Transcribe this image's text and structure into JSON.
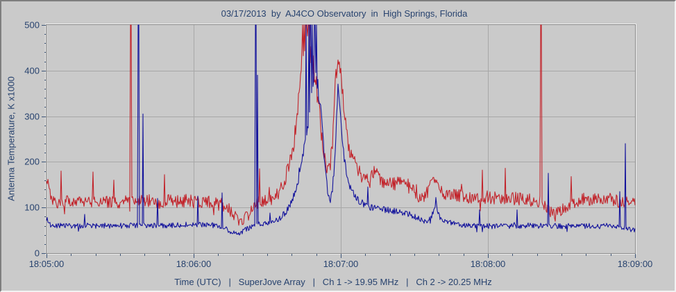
{
  "colors": {
    "window_bg": "#cacaca",
    "plot_border": "#8a8a8a",
    "plot_bevel": "#efefef",
    "grid": "#a7a7a7",
    "tick": "#3d5578",
    "text": "#27426e",
    "ch1": "#c2242b",
    "ch2": "#14149c"
  },
  "chart_data": {
    "type": "line",
    "title": "03/17/2013  by  AJ4CO Observatory  in  High Springs, Florida",
    "xlabel": "Time (UTC)   |   SuperJove Array   |   Ch 1 -> 19.95 MHz   |   Ch 2 -> 20.25 MHz",
    "ylabel": "Antenna Temperature, K x1000",
    "x_tick_labels": [
      "18:05:00",
      "18:06:00",
      "18:07:00",
      "18:08:00",
      "18:09:00"
    ],
    "y_tick_values": [
      0,
      100,
      200,
      300,
      400,
      500
    ],
    "ylim": [
      0,
      500
    ],
    "x_span_seconds": 240,
    "x_minor_tick_seconds": 10,
    "y_minor_tick": 20,
    "grid": "on",
    "legend": "none",
    "seed": 20130317,
    "series": [
      {
        "name": "Ch 1",
        "frequency": "19.95 MHz",
        "color_key": "ch1",
        "noise_base": 9,
        "noise_scale": 0.045,
        "envelope": [
          [
            0,
            165
          ],
          [
            0.8,
            148
          ],
          [
            1.6,
            128
          ],
          [
            3,
            114
          ],
          [
            6,
            110
          ],
          [
            10,
            114
          ],
          [
            14,
            111
          ],
          [
            18,
            115
          ],
          [
            22,
            111
          ],
          [
            26,
            114
          ],
          [
            30,
            111
          ],
          [
            34,
            116
          ],
          [
            38,
            113
          ],
          [
            42,
            115
          ],
          [
            46,
            111
          ],
          [
            50,
            116
          ],
          [
            54,
            112
          ],
          [
            58,
            115
          ],
          [
            62,
            110
          ],
          [
            66,
            112
          ],
          [
            69,
            108
          ],
          [
            72,
            106
          ],
          [
            74,
            99
          ],
          [
            76,
            88
          ],
          [
            78,
            75
          ],
          [
            79.5,
            68
          ],
          [
            81,
            78
          ],
          [
            82.5,
            94
          ],
          [
            84,
            106
          ],
          [
            86,
            112
          ],
          [
            88,
            114
          ],
          [
            90,
            116
          ],
          [
            92,
            118
          ],
          [
            94,
            128
          ],
          [
            96,
            146
          ],
          [
            97.5,
            166
          ],
          [
            99,
            196
          ],
          [
            100.5,
            232
          ],
          [
            102,
            292
          ],
          [
            103,
            352
          ],
          [
            104,
            438
          ],
          [
            104.8,
            464
          ],
          [
            105.6,
            470
          ],
          [
            106.4,
            458
          ],
          [
            107.2,
            446
          ],
          [
            108,
            432
          ],
          [
            109,
            406
          ],
          [
            110,
            372
          ],
          [
            110.8,
            332
          ],
          [
            111.6,
            292
          ],
          [
            112.4,
            246
          ],
          [
            113.2,
            202
          ],
          [
            114,
            182
          ],
          [
            114.8,
            178
          ],
          [
            115.6,
            192
          ],
          [
            116.4,
            226
          ],
          [
            117.2,
            302
          ],
          [
            118,
            392
          ],
          [
            118.6,
            428
          ],
          [
            119.2,
            437
          ],
          [
            119.8,
            416
          ],
          [
            120.5,
            372
          ],
          [
            121.3,
            322
          ],
          [
            122.1,
            272
          ],
          [
            123,
            236
          ],
          [
            124,
            214
          ],
          [
            125.5,
            196
          ],
          [
            127,
            181
          ],
          [
            128.5,
            169
          ],
          [
            130,
            163
          ],
          [
            132,
            159
          ],
          [
            133.5,
            181
          ],
          [
            135,
            168
          ],
          [
            137,
            158
          ],
          [
            139,
            153
          ],
          [
            141,
            156
          ],
          [
            143,
            151
          ],
          [
            145,
            156
          ],
          [
            147,
            151
          ],
          [
            149,
            139
          ],
          [
            151,
            123
          ],
          [
            152.5,
            116
          ],
          [
            154,
            121
          ],
          [
            155.5,
            136
          ],
          [
            157,
            149
          ],
          [
            158.2,
            159
          ],
          [
            159.2,
            149
          ],
          [
            160.5,
            139
          ],
          [
            162,
            133
          ],
          [
            164,
            129
          ],
          [
            167,
            127
          ],
          [
            170,
            125
          ],
          [
            173,
            123
          ],
          [
            176,
            121
          ],
          [
            179,
            120
          ],
          [
            182,
            122
          ],
          [
            185,
            120
          ],
          [
            188,
            118
          ],
          [
            191,
            120
          ],
          [
            194,
            118
          ],
          [
            197,
            116
          ],
          [
            200,
            114
          ],
          [
            201.3,
            116
          ],
          [
            202.4,
            110
          ],
          [
            203.5,
            99
          ],
          [
            205,
            91
          ],
          [
            206.5,
            86
          ],
          [
            208,
            87
          ],
          [
            209.5,
            93
          ],
          [
            211,
            99
          ],
          [
            213,
            106
          ],
          [
            215,
            111
          ],
          [
            217.5,
            117
          ],
          [
            220,
            121
          ],
          [
            222.5,
            118
          ],
          [
            225,
            122
          ],
          [
            227.5,
            117
          ],
          [
            230,
            121
          ],
          [
            232,
            116
          ],
          [
            234,
            112
          ],
          [
            236,
            110
          ],
          [
            238,
            112
          ],
          [
            240,
            108
          ]
        ],
        "spikes": [
          [
            6,
            180
          ],
          [
            19,
            178
          ],
          [
            27.5,
            160
          ],
          [
            34.3,
            500,
            2
          ],
          [
            48,
            172
          ],
          [
            86.8,
            185
          ],
          [
            104.4,
            500
          ],
          [
            104.9,
            500
          ],
          [
            105.5,
            500,
            2
          ],
          [
            106.2,
            500
          ],
          [
            106.8,
            500,
            2
          ],
          [
            107.4,
            500
          ],
          [
            177.7,
            182
          ],
          [
            187,
            186
          ],
          [
            201.6,
            500,
            2
          ],
          [
            214,
            168
          ]
        ]
      },
      {
        "name": "Ch 2",
        "frequency": "20.25 MHz",
        "color_key": "ch2",
        "noise_base": 3.5,
        "noise_scale": 0.04,
        "envelope": [
          [
            0,
            76
          ],
          [
            1,
            64
          ],
          [
            3,
            60
          ],
          [
            6,
            61
          ],
          [
            9,
            59
          ],
          [
            12,
            61
          ],
          [
            15,
            59
          ],
          [
            18,
            61
          ],
          [
            21,
            59
          ],
          [
            24,
            61
          ],
          [
            27,
            59
          ],
          [
            30,
            60
          ],
          [
            33,
            61
          ],
          [
            36,
            60
          ],
          [
            39,
            61
          ],
          [
            42,
            60
          ],
          [
            45,
            61
          ],
          [
            48,
            60
          ],
          [
            51,
            61
          ],
          [
            54,
            62
          ],
          [
            57,
            63
          ],
          [
            60,
            61
          ],
          [
            63,
            62
          ],
          [
            66,
            63
          ],
          [
            68,
            61
          ],
          [
            70,
            60
          ],
          [
            72,
            57
          ],
          [
            74,
            50
          ],
          [
            76,
            45
          ],
          [
            78,
            42
          ],
          [
            80,
            47
          ],
          [
            82,
            54
          ],
          [
            84,
            58
          ],
          [
            86,
            62
          ],
          [
            88,
            64
          ],
          [
            90,
            65
          ],
          [
            92,
            66
          ],
          [
            94,
            72
          ],
          [
            96,
            81
          ],
          [
            98,
            93
          ],
          [
            100,
            113
          ],
          [
            101.5,
            136
          ],
          [
            103,
            166
          ],
          [
            104.3,
            202
          ],
          [
            105.5,
            242
          ],
          [
            106.6,
            282
          ],
          [
            107.7,
            322
          ],
          [
            108.7,
            356
          ],
          [
            109.6,
            376
          ],
          [
            110.3,
            380
          ],
          [
            111,
            348
          ],
          [
            111.8,
            310
          ],
          [
            112.6,
            262
          ],
          [
            113.4,
            208
          ],
          [
            114.1,
            162
          ],
          [
            114.8,
            128
          ],
          [
            115.4,
            114
          ],
          [
            116,
            122
          ],
          [
            116.7,
            146
          ],
          [
            117.4,
            190
          ],
          [
            118,
            248
          ],
          [
            118.5,
            320
          ],
          [
            118.9,
            372
          ],
          [
            119.3,
            352
          ],
          [
            119.8,
            308
          ],
          [
            120.4,
            262
          ],
          [
            121.1,
            222
          ],
          [
            121.9,
            188
          ],
          [
            122.8,
            162
          ],
          [
            123.7,
            147
          ],
          [
            125,
            131
          ],
          [
            126.5,
            119
          ],
          [
            128,
            113
          ],
          [
            130,
            106
          ],
          [
            132,
            101
          ],
          [
            135,
            98
          ],
          [
            138,
            96
          ],
          [
            141,
            93
          ],
          [
            144,
            91
          ],
          [
            147,
            86
          ],
          [
            150,
            81
          ],
          [
            152,
            75
          ],
          [
            154,
            70
          ],
          [
            156,
            73
          ],
          [
            157.5,
            86
          ],
          [
            158.6,
            106
          ],
          [
            159.4,
            96
          ],
          [
            160.5,
            79
          ],
          [
            162,
            71
          ],
          [
            164,
            67
          ],
          [
            167,
            64
          ],
          [
            170,
            62
          ],
          [
            174,
            60
          ],
          [
            178,
            59
          ],
          [
            182,
            60
          ],
          [
            186,
            59
          ],
          [
            190,
            60
          ],
          [
            194,
            59
          ],
          [
            198,
            60
          ],
          [
            202,
            59
          ],
          [
            206,
            60
          ],
          [
            210,
            59
          ],
          [
            214,
            60
          ],
          [
            218,
            59
          ],
          [
            222,
            60
          ],
          [
            226,
            59
          ],
          [
            229,
            61
          ],
          [
            232,
            60
          ],
          [
            234,
            58
          ],
          [
            236,
            56
          ],
          [
            238,
            53
          ],
          [
            240,
            50
          ]
        ],
        "spikes": [
          [
            15.6,
            85
          ],
          [
            37.4,
            500,
            2
          ],
          [
            39.2,
            305
          ],
          [
            45.4,
            120
          ],
          [
            61.6,
            125
          ],
          [
            71.7,
            132
          ],
          [
            85.1,
            500,
            2
          ],
          [
            86,
            390
          ],
          [
            91,
            88
          ],
          [
            105.8,
            500
          ],
          [
            106.9,
            500
          ],
          [
            107.5,
            500,
            2
          ],
          [
            108.3,
            500
          ],
          [
            109.3,
            500,
            2
          ],
          [
            110.1,
            500
          ],
          [
            131,
            145
          ],
          [
            158.7,
            122
          ],
          [
            176.7,
            95
          ],
          [
            192,
            95
          ],
          [
            204.5,
            175
          ],
          [
            233.8,
            135
          ],
          [
            236.1,
            240
          ]
        ]
      }
    ]
  }
}
